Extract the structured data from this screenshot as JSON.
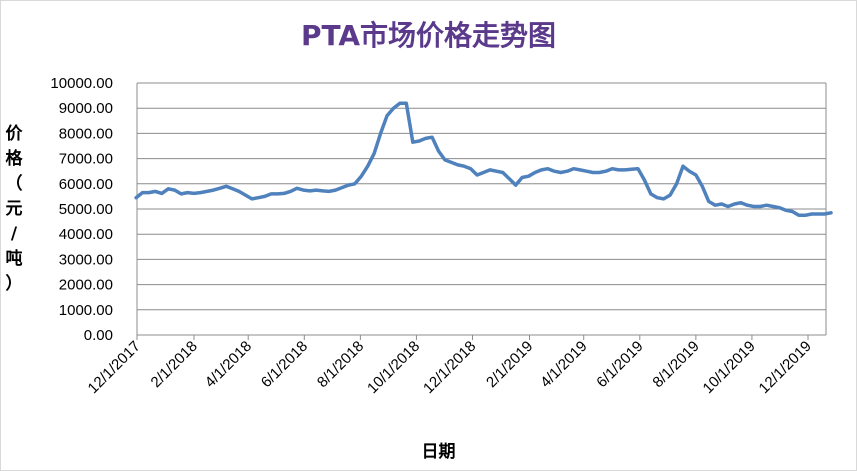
{
  "chart_data": {
    "type": "line",
    "title": "PTA市场价格走势图",
    "xlabel": "日期",
    "ylabel": "价格（元/吨）",
    "ylim": [
      0,
      10000
    ],
    "y_ticks": [
      "0.00",
      "1000.00",
      "2000.00",
      "3000.00",
      "4000.00",
      "5000.00",
      "6000.00",
      "7000.00",
      "8000.00",
      "9000.00",
      "10000.00"
    ],
    "x_ticks": [
      "12/1/2017",
      "2/1/2018",
      "4/1/2018",
      "6/1/2018",
      "8/1/2018",
      "10/1/2018",
      "12/1/2018",
      "2/1/2019",
      "4/1/2019",
      "6/1/2019",
      "8/1/2019",
      "10/1/2019",
      "12/1/2019"
    ],
    "grid": true,
    "legend": "none",
    "line_color": "#4f81bd",
    "x": [
      "11/30/2017",
      "12/7/2017",
      "12/14/2017",
      "12/21/2017",
      "12/28/2017",
      "1/4/2018",
      "1/11/2018",
      "1/18/2018",
      "1/25/2018",
      "2/1/2018",
      "2/8/2018",
      "2/15/2018",
      "2/22/2018",
      "3/1/2018",
      "3/8/2018",
      "3/15/2018",
      "3/22/2018",
      "3/29/2018",
      "4/5/2018",
      "4/12/2018",
      "4/19/2018",
      "4/26/2018",
      "5/3/2018",
      "5/10/2018",
      "5/17/2018",
      "5/24/2018",
      "5/31/2018",
      "6/7/2018",
      "6/14/2018",
      "6/21/2018",
      "6/28/2018",
      "7/5/2018",
      "7/12/2018",
      "7/19/2018",
      "7/26/2018",
      "8/2/2018",
      "8/9/2018",
      "8/16/2018",
      "8/23/2018",
      "8/30/2018",
      "9/6/2018",
      "9/13/2018",
      "9/20/2018",
      "9/27/2018",
      "10/4/2018",
      "10/11/2018",
      "10/18/2018",
      "10/25/2018",
      "11/1/2018",
      "11/8/2018",
      "11/15/2018",
      "11/22/2018",
      "11/29/2018",
      "12/6/2018",
      "12/13/2018",
      "12/20/2018",
      "12/27/2018",
      "1/3/2019",
      "1/10/2019",
      "1/17/2019",
      "1/24/2019",
      "1/31/2019",
      "2/7/2019",
      "2/14/2019",
      "2/21/2019",
      "2/28/2019",
      "3/7/2019",
      "3/14/2019",
      "3/21/2019",
      "3/28/2019",
      "4/4/2019",
      "4/11/2019",
      "4/18/2019",
      "4/25/2019",
      "5/2/2019",
      "5/9/2019",
      "5/16/2019",
      "5/23/2019",
      "5/30/2019",
      "6/6/2019",
      "6/13/2019",
      "6/20/2019",
      "6/27/2019",
      "7/4/2019",
      "7/11/2019",
      "7/18/2019",
      "7/25/2019",
      "8/1/2019",
      "8/8/2019",
      "8/15/2019",
      "8/22/2019",
      "8/29/2019",
      "9/5/2019",
      "9/12/2019",
      "9/19/2019",
      "9/26/2019",
      "10/3/2019",
      "10/10/2019",
      "10/17/2019",
      "10/24/2019",
      "10/31/2019",
      "11/7/2019",
      "11/14/2019",
      "11/21/2019",
      "11/28/2019",
      "12/5/2019",
      "12/12/2019",
      "12/19/2019",
      "12/26/2019"
    ],
    "values": [
      5450,
      5650,
      5650,
      5700,
      5620,
      5800,
      5750,
      5600,
      5650,
      5620,
      5650,
      5700,
      5750,
      5820,
      5900,
      5800,
      5700,
      5550,
      5400,
      5450,
      5500,
      5600,
      5600,
      5620,
      5700,
      5820,
      5750,
      5720,
      5750,
      5720,
      5700,
      5750,
      5850,
      5950,
      6000,
      6300,
      6700,
      7200,
      8000,
      8700,
      9000,
      9200,
      9200,
      7650,
      7700,
      7800,
      7850,
      7300,
      6950,
      6850,
      6750,
      6700,
      6600,
      6350,
      6450,
      6550,
      6500,
      6450,
      6200,
      5950,
      6250,
      6300,
      6450,
      6550,
      6600,
      6500,
      6450,
      6500,
      6600,
      6550,
      6500,
      6450,
      6450,
      6500,
      6600,
      6550,
      6550,
      6580,
      6600,
      6150,
      5600,
      5450,
      5400,
      5550,
      6000,
      6700,
      6500,
      6350,
      5900,
      5300,
      5150,
      5200,
      5100,
      5200,
      5250,
      5150,
      5100,
      5100,
      5150,
      5100,
      5050,
      4950,
      4900,
      4750,
      4750,
      4800,
      4800,
      4800,
      4850
    ]
  }
}
